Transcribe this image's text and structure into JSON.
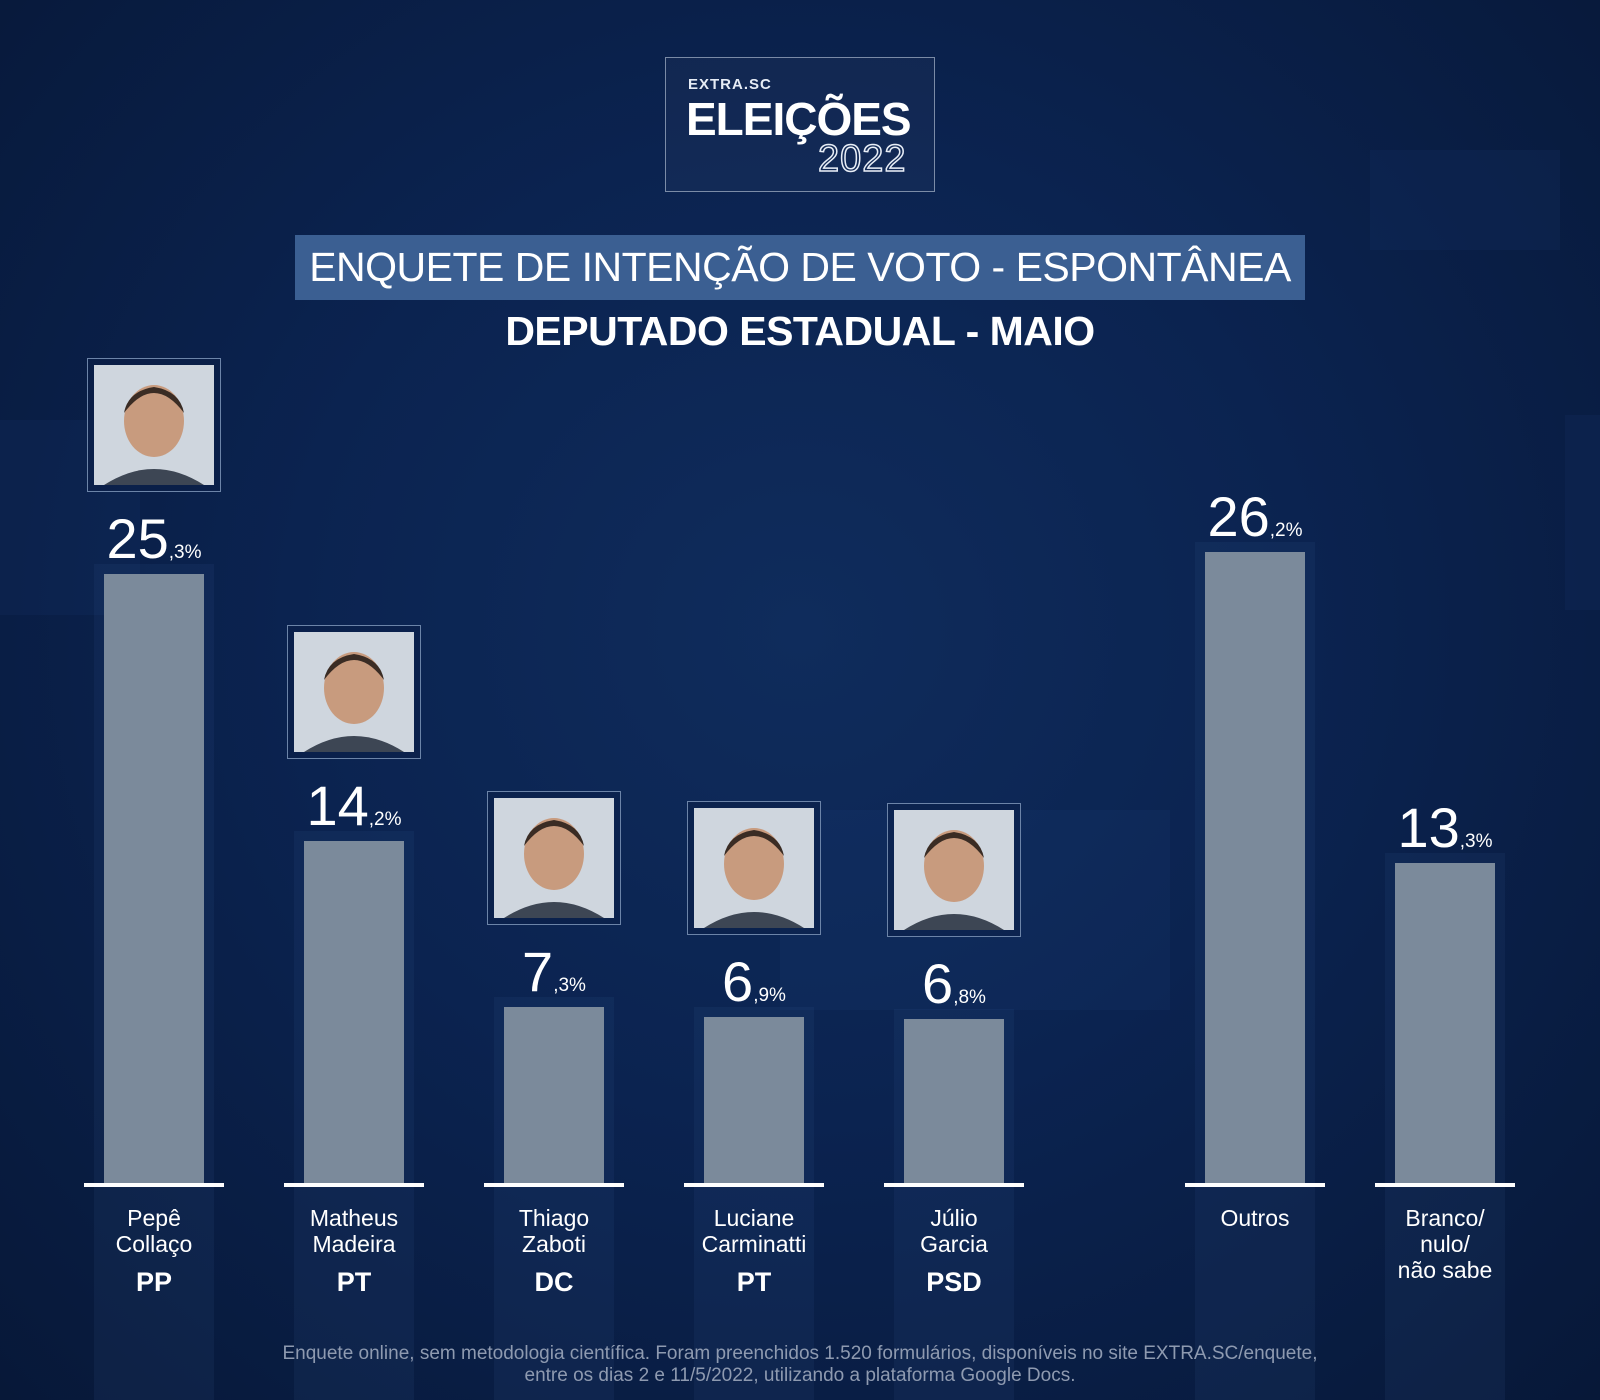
{
  "logo": {
    "brand": "EXTRA.SC",
    "title": "ELEIÇÕES",
    "year": "2022"
  },
  "header": {
    "banner": "ENQUETE DE INTENÇÃO DE VOTO - ESPONTÂNEA",
    "subtitle": "DEPUTADO ESTADUAL - MAIO"
  },
  "chart_data": {
    "type": "bar",
    "title": "ENQUETE DE INTENÇÃO DE VOTO - ESPONTÂNEA",
    "subtitle": "DEPUTADO ESTADUAL - MAIO",
    "xlabel": "",
    "ylabel": "",
    "unit": "%",
    "grid": false,
    "legend": "none",
    "ylim": [
      0,
      30
    ],
    "categories": [
      {
        "name_lines": [
          "Pepê",
          "Collaço"
        ],
        "party": "PP",
        "value": 25.3,
        "int": "25",
        "dec": ",3%",
        "photo": true
      },
      {
        "name_lines": [
          "Matheus",
          "Madeira"
        ],
        "party": "PT",
        "value": 14.2,
        "int": "14",
        "dec": ",2%",
        "photo": true
      },
      {
        "name_lines": [
          "Thiago",
          "Zaboti"
        ],
        "party": "DC",
        "value": 7.3,
        "int": "7",
        "dec": ",3%",
        "photo": true
      },
      {
        "name_lines": [
          "Luciane",
          "Carminatti"
        ],
        "party": "PT",
        "value": 6.9,
        "int": "6",
        "dec": ",9%",
        "photo": true
      },
      {
        "name_lines": [
          "Júlio",
          "Garcia"
        ],
        "party": "PSD",
        "value": 6.8,
        "int": "6",
        "dec": ",8%",
        "photo": true
      },
      {
        "name_lines": [
          "Outros"
        ],
        "party": "",
        "value": 26.2,
        "int": "26",
        "dec": ",2%",
        "photo": false
      },
      {
        "name_lines": [
          "Branco/",
          "nulo/",
          "não sabe"
        ],
        "party": "",
        "value": 13.3,
        "int": "13",
        "dec": ",3%",
        "photo": false
      }
    ],
    "colors": {
      "bar": "#7b8a9b",
      "baseline": "#ffffff",
      "banner": "#3b5f92"
    }
  },
  "footnote": {
    "line1": "Enquete online, sem metodologia científica. Foram preenchidos 1.520 formulários, disponíveis no site EXTRA.SC/enquete,",
    "line2": "entre os dias 2 e 11/5/2022, utilizando a plataforma Google Docs."
  }
}
